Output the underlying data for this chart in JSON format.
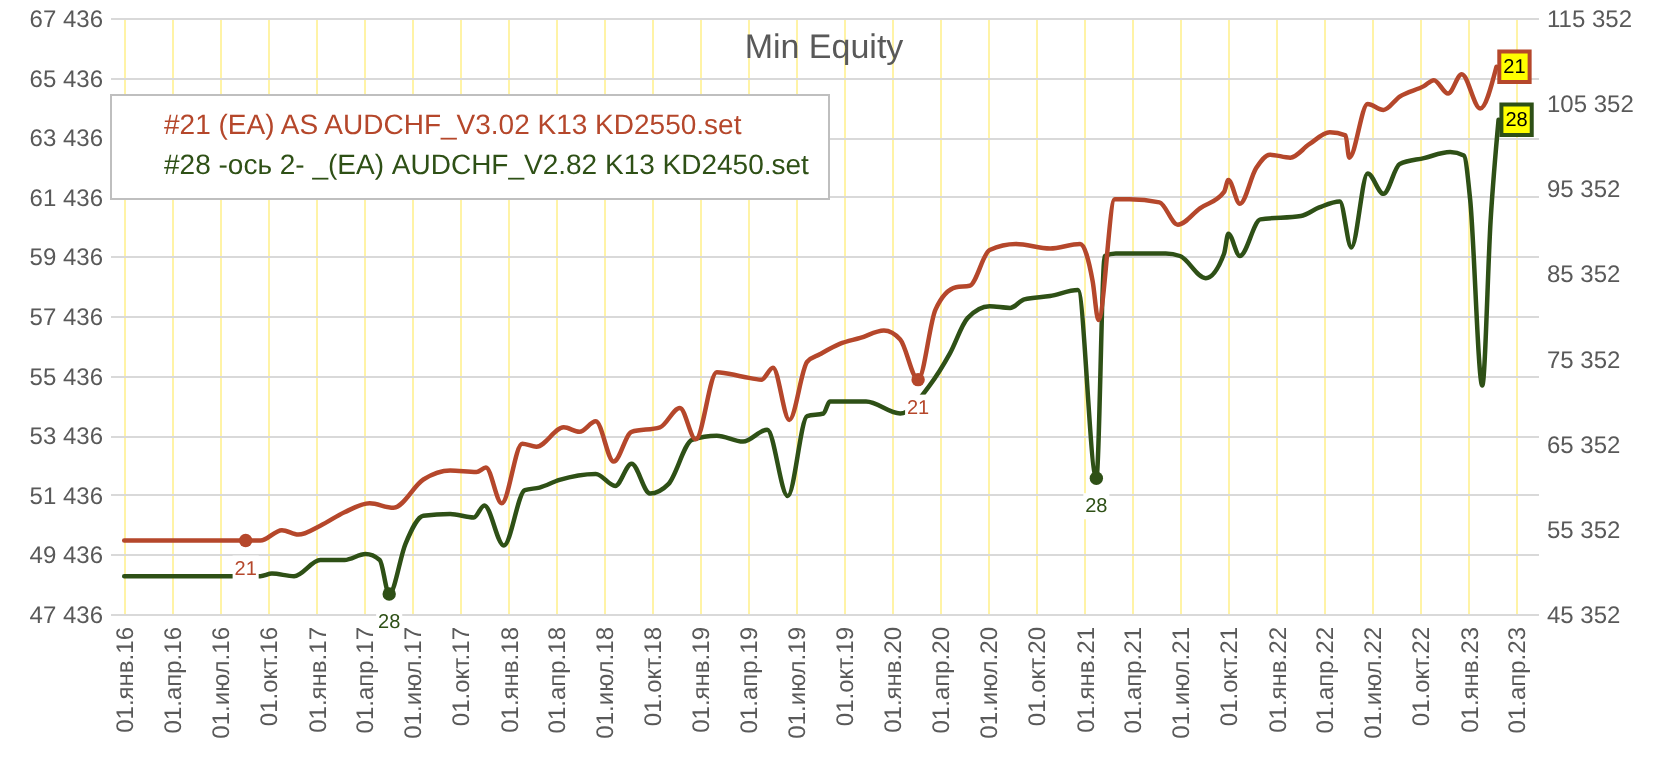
{
  "chart_data": {
    "type": "line",
    "title": "Min Equity",
    "xlim": [
      "2015-12-05",
      "2023-05-13"
    ],
    "xticks": [
      {
        "value": "2016-01-01",
        "label": "01.янв.16"
      },
      {
        "value": "2016-04-01",
        "label": "01.апр.16"
      },
      {
        "value": "2016-07-01",
        "label": "01.июл.16"
      },
      {
        "value": "2016-10-01",
        "label": "01.окт.16"
      },
      {
        "value": "2017-01-01",
        "label": "01.янв.17"
      },
      {
        "value": "2017-04-01",
        "label": "01.апр.17"
      },
      {
        "value": "2017-07-01",
        "label": "01.июл.17"
      },
      {
        "value": "2017-10-01",
        "label": "01.окт.17"
      },
      {
        "value": "2018-01-01",
        "label": "01.янв.18"
      },
      {
        "value": "2018-04-01",
        "label": "01.апр.18"
      },
      {
        "value": "2018-07-01",
        "label": "01.июл.18"
      },
      {
        "value": "2018-10-01",
        "label": "01.окт.18"
      },
      {
        "value": "2019-01-01",
        "label": "01.янв.19"
      },
      {
        "value": "2019-04-01",
        "label": "01.апр.19"
      },
      {
        "value": "2019-07-01",
        "label": "01.июл.19"
      },
      {
        "value": "2019-10-01",
        "label": "01.окт.19"
      },
      {
        "value": "2020-01-01",
        "label": "01.янв.20"
      },
      {
        "value": "2020-04-01",
        "label": "01.апр.20"
      },
      {
        "value": "2020-07-01",
        "label": "01.июл.20"
      },
      {
        "value": "2020-10-01",
        "label": "01.окт.20"
      },
      {
        "value": "2021-01-01",
        "label": "01.янв.21"
      },
      {
        "value": "2021-04-01",
        "label": "01.апр.21"
      },
      {
        "value": "2021-07-01",
        "label": "01.июл.21"
      },
      {
        "value": "2021-10-01",
        "label": "01.окт.21"
      },
      {
        "value": "2022-01-01",
        "label": "01.янв.22"
      },
      {
        "value": "2022-04-01",
        "label": "01.апр.22"
      },
      {
        "value": "2022-07-01",
        "label": "01.июл.22"
      },
      {
        "value": "2022-10-01",
        "label": "01.окт.22"
      },
      {
        "value": "2023-01-01",
        "label": "01.янв.23"
      },
      {
        "value": "2023-04-01",
        "label": "01.апр.23"
      }
    ],
    "ylim": [
      47436,
      67436
    ],
    "yticks": [
      {
        "value": 47436,
        "label": "47 436"
      },
      {
        "value": 49436,
        "label": "49 436"
      },
      {
        "value": 51436,
        "label": "51 436"
      },
      {
        "value": 53436,
        "label": "53 436"
      },
      {
        "value": 55436,
        "label": "55 436"
      },
      {
        "value": 57436,
        "label": "57 436"
      },
      {
        "value": 59436,
        "label": "59 436"
      },
      {
        "value": 61436,
        "label": "61 436"
      },
      {
        "value": 63436,
        "label": "63 436"
      },
      {
        "value": 65436,
        "label": "65 436"
      },
      {
        "value": 67436,
        "label": "67 436"
      }
    ],
    "y2lim": [
      45352,
      115352
    ],
    "y2ticks": [
      {
        "value": 45352,
        "label": "45 352"
      },
      {
        "value": 55352,
        "label": "55 352"
      },
      {
        "value": 65352,
        "label": "65 352"
      },
      {
        "value": 75352,
        "label": "75 352"
      },
      {
        "value": 85352,
        "label": "85 352"
      },
      {
        "value": 95352,
        "label": "95 352"
      },
      {
        "value": 105352,
        "label": "105 352"
      },
      {
        "value": 115352,
        "label": "115 352"
      }
    ],
    "grid": true,
    "legend": "top left",
    "series": [
      {
        "name": "#21 (EA) AS AUDCHF_V3.02 K13 KD2550.set",
        "color": "#b5472b",
        "x": [
          "2016-01-01",
          "2016-08-19",
          "2016-09-16",
          "2016-10-27",
          "2016-11-27",
          "2017-01-08",
          "2017-02-23",
          "2017-04-12",
          "2017-05-27",
          "2017-07-23",
          "2017-09-12",
          "2017-11-01",
          "2017-11-19",
          "2017-12-19",
          "2018-01-27",
          "2018-02-23",
          "2018-04-16",
          "2018-05-16",
          "2018-06-16",
          "2018-07-20",
          "2018-08-23",
          "2018-10-16",
          "2018-11-23",
          "2018-12-23",
          "2019-02-01",
          "2019-03-23",
          "2019-04-27",
          "2019-05-19",
          "2019-06-19",
          "2019-07-23",
          "2019-08-16",
          "2019-09-23",
          "2019-11-01",
          "2019-12-16",
          "2020-01-16",
          "2020-02-19",
          "2020-03-23",
          "2020-05-01",
          "2020-05-27",
          "2020-07-04",
          "2020-08-23",
          "2020-10-27",
          "2020-12-23",
          "2021-01-16",
          "2021-01-27",
          "2021-02-27",
          "2021-03-27",
          "2021-05-23",
          "2021-06-27",
          "2021-08-08",
          "2021-09-23",
          "2021-10-01",
          "2021-10-23",
          "2021-11-23",
          "2021-12-19",
          "2022-01-27",
          "2022-03-04",
          "2022-04-12",
          "2022-05-12",
          "2022-05-19",
          "2022-06-23",
          "2022-07-23",
          "2022-08-23",
          "2022-10-08",
          "2022-10-27",
          "2022-11-23",
          "2022-12-19",
          "2023-01-23",
          "2023-02-23"
        ],
        "values": [
          49900,
          49900,
          49900,
          50250,
          50100,
          50400,
          50850,
          51150,
          51000,
          51950,
          52250,
          52200,
          52350,
          51150,
          53150,
          53050,
          53700,
          53550,
          53900,
          52550,
          53550,
          53700,
          54350,
          53300,
          55550,
          55400,
          55300,
          55700,
          53950,
          55900,
          56150,
          56500,
          56700,
          56950,
          56650,
          55300,
          57650,
          58400,
          58450,
          59650,
          59850,
          59700,
          59850,
          58600,
          57300,
          61350,
          61350,
          61250,
          60500,
          61050,
          61600,
          62000,
          61200,
          62400,
          62850,
          62750,
          63200,
          63600,
          63500,
          62750,
          64550,
          64350,
          64800,
          65150,
          65350,
          64900,
          65550,
          64400,
          65800
        ]
      },
      {
        "name": "#28 -ось 2- _(EA) AUDCHF_V2.82 K13 KD2450.set",
        "color": "#2e5016",
        "axis": "y2",
        "x": [
          "2016-01-01",
          "2016-09-16",
          "2016-10-08",
          "2016-11-19",
          "2017-01-08",
          "2017-02-23",
          "2017-04-04",
          "2017-05-01",
          "2017-05-19",
          "2017-06-19",
          "2017-07-23",
          "2017-09-12",
          "2017-10-27",
          "2017-11-16",
          "2017-12-23",
          "2018-02-01",
          "2018-03-01",
          "2018-04-08",
          "2018-06-16",
          "2018-07-23",
          "2018-08-23",
          "2018-09-27",
          "2018-11-01",
          "2018-12-16",
          "2019-02-01",
          "2019-03-23",
          "2019-05-08",
          "2019-06-16",
          "2019-07-23",
          "2019-08-23",
          "2019-09-04",
          "2019-11-12",
          "2020-01-16",
          "2020-03-12",
          "2020-04-19",
          "2020-05-23",
          "2020-07-04",
          "2020-08-12",
          "2020-09-08",
          "2020-10-27",
          "2020-12-19",
          "2021-01-23",
          "2021-02-08",
          "2021-03-01",
          "2021-06-04",
          "2021-07-01",
          "2021-08-19",
          "2021-09-23",
          "2021-10-01",
          "2021-10-23",
          "2021-12-01",
          "2022-02-16",
          "2022-03-23",
          "2022-05-01",
          "2022-05-23",
          "2022-06-23",
          "2022-07-23",
          "2022-08-23",
          "2022-10-08",
          "2022-11-27",
          "2022-12-23",
          "2023-01-04",
          "2023-01-27",
          "2023-02-12",
          "2023-02-27"
        ],
        "values": [
          49800,
          49800,
          50100,
          49800,
          51700,
          51700,
          52400,
          51700,
          47700,
          53600,
          56900,
          57100,
          56700,
          58100,
          53400,
          59900,
          60200,
          61100,
          61800,
          60400,
          63000,
          59500,
          60600,
          65800,
          66300,
          65600,
          67000,
          59200,
          68600,
          68900,
          70300,
          70300,
          68900,
          72200,
          75900,
          80100,
          81500,
          81300,
          82300,
          82700,
          83400,
          61300,
          87400,
          87700,
          87700,
          87400,
          84800,
          87700,
          90000,
          87400,
          91700,
          92100,
          93100,
          93800,
          88400,
          97100,
          94700,
          98200,
          98900,
          99600,
          99200,
          94000,
          72200,
          91700,
          103400
        ],
        "line_style": "solid"
      }
    ],
    "annotations": [
      {
        "text": "21",
        "x": "2016-08-19",
        "y": 49900
      },
      {
        "text": "21",
        "x": "2020-02-19",
        "y": 55300
      },
      {
        "text": "21",
        "x": "2023-02-23",
        "y": 65800
      },
      {
        "text": "28",
        "x": "2017-05-19",
        "y": 47700
      },
      {
        "text": "28",
        "x": "2021-01-23"
      },
      {
        "text": "28",
        "x": "2023-02-27"
      }
    ]
  }
}
